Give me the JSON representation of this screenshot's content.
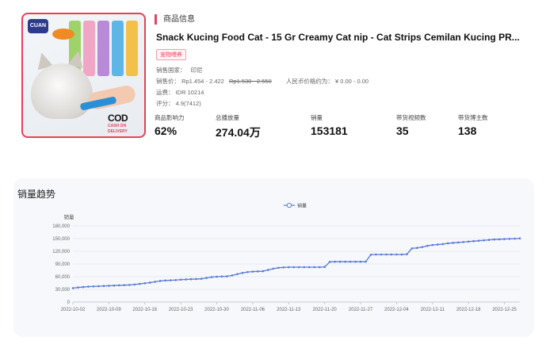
{
  "product": {
    "section_title": "商品信息",
    "title": "Snack Kucing Food Cat - 15 Gr Creamy Cat nip - Cat Strips Cemilan Kucing PR...",
    "category_tag": "宠物喂养",
    "country_label": "销售国家：",
    "country_value": "印尼",
    "price_label": "销售价：",
    "price_value": "Rp1.454 - 2.422",
    "price_original": "Rp1.530 - 2.550",
    "rmb_label": "人民币价格约为：",
    "rmb_value": "¥ 0.00 - 0.00",
    "shipping_label": "运费：",
    "shipping_value": "IDR 10214",
    "rating_label": "评分：",
    "rating_value": "4.9(7412)",
    "image": {
      "cod_text": "COD",
      "cod_sub": "CASH ON DELIVERY",
      "brand_logo": "CUAN"
    }
  },
  "stats": [
    {
      "label": "商品影响力",
      "value": "62%"
    },
    {
      "label": "总播放量",
      "value": "274.04万"
    },
    {
      "label": "销量",
      "value": "153181"
    },
    {
      "label": "带货视频数",
      "value": "35"
    },
    {
      "label": "带货博主数",
      "value": "138"
    }
  ],
  "trend": {
    "title": "销量趋势"
  },
  "chart_data": {
    "type": "line",
    "title": "",
    "xlabel": "",
    "ylabel": "销量",
    "ylim": [
      0,
      180000
    ],
    "yticks": [
      0,
      30000,
      60000,
      90000,
      120000,
      150000,
      180000
    ],
    "ytick_labels": [
      "0",
      "30,000",
      "60,000",
      "90,000",
      "120,000",
      "150,000",
      "180,000"
    ],
    "x_tick_labels": [
      "2022-10-02",
      "2022-10-09",
      "2022-10-16",
      "2022-10-23",
      "2022-10-30",
      "2022-11-06",
      "2022-11-13",
      "2022-11-20",
      "2022-11-27",
      "2022-12-04",
      "2022-12-11",
      "2022-12-18",
      "2022-12-25"
    ],
    "grid": true,
    "legend_position": "top-center",
    "color": "#5b7bd5",
    "x_start": "2022-10-02",
    "x_end": "2022-12-28",
    "series": [
      {
        "name": "销量",
        "values": [
          33000,
          34500,
          35500,
          36500,
          37000,
          37500,
          38000,
          38500,
          39000,
          39500,
          40000,
          40500,
          41500,
          43000,
          44500,
          46000,
          48000,
          50000,
          51000,
          51500,
          52000,
          53000,
          53500,
          54000,
          54500,
          55000,
          57000,
          59000,
          60000,
          60500,
          61000,
          63000,
          66000,
          69000,
          71000,
          72000,
          72500,
          73000,
          76000,
          79000,
          81000,
          82000,
          82500,
          82500,
          82500,
          82500,
          82500,
          82500,
          82500,
          83000,
          95000,
          95500,
          95500,
          95500,
          95500,
          95500,
          95500,
          95500,
          112000,
          112500,
          112500,
          112500,
          112500,
          112500,
          112500,
          113000,
          127000,
          128000,
          130000,
          133000,
          135000,
          136000,
          137000,
          139000,
          140000,
          141000,
          142000,
          143000,
          144000,
          145000,
          146000,
          147000,
          148000,
          148500,
          149000,
          149500,
          150000,
          150500
        ]
      }
    ]
  }
}
